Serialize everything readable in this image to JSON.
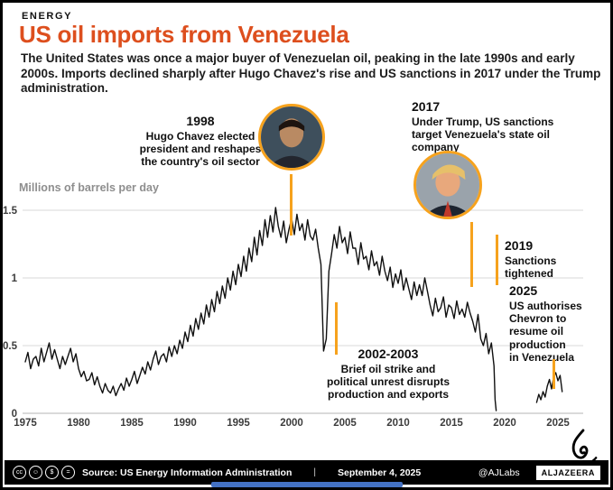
{
  "header": {
    "kicker": "ENERGY",
    "title": "US oil imports from Venezuela",
    "intro": "The United States was once a major buyer of Venezuelan oil, peaking in the late 1990s and early 2000s. Imports declined sharply after Hugo Chavez's rise and US sanctions in 2017 under the Trump administration."
  },
  "chart_data": {
    "type": "line",
    "title": "US oil imports from Venezuela",
    "ylabel": "Millions of barrels per day",
    "xlabel": "",
    "ylim": [
      0,
      1.5
    ],
    "xlim": [
      1975,
      2025.6
    ],
    "y_ticks": [
      0,
      0.5,
      1,
      1.5
    ],
    "x_ticks": [
      1975,
      1980,
      1985,
      1990,
      1995,
      2000,
      2005,
      2010,
      2015,
      2020,
      2025
    ],
    "grid": true,
    "legend": "none",
    "series": [
      {
        "name": "US oil imports from Venezuela (million barrels per day)",
        "segments": [
          [
            [
              1975,
              0.38
            ],
            [
              1975.25,
              0.45
            ],
            [
              1975.5,
              0.33
            ],
            [
              1975.75,
              0.4
            ],
            [
              1976,
              0.42
            ],
            [
              1976.25,
              0.35
            ],
            [
              1976.5,
              0.48
            ],
            [
              1976.75,
              0.38
            ],
            [
              1977,
              0.45
            ],
            [
              1977.25,
              0.52
            ],
            [
              1977.5,
              0.4
            ],
            [
              1977.75,
              0.47
            ],
            [
              1978,
              0.4
            ],
            [
              1978.25,
              0.33
            ],
            [
              1978.5,
              0.42
            ],
            [
              1978.75,
              0.36
            ],
            [
              1979,
              0.42
            ],
            [
              1979.25,
              0.48
            ],
            [
              1979.5,
              0.38
            ],
            [
              1979.75,
              0.44
            ],
            [
              1980,
              0.33
            ],
            [
              1980.25,
              0.27
            ],
            [
              1980.5,
              0.31
            ],
            [
              1980.75,
              0.24
            ],
            [
              1981,
              0.25
            ],
            [
              1981.25,
              0.3
            ],
            [
              1981.5,
              0.21
            ],
            [
              1981.75,
              0.27
            ],
            [
              1982,
              0.2
            ],
            [
              1982.25,
              0.15
            ],
            [
              1982.5,
              0.22
            ],
            [
              1982.75,
              0.17
            ],
            [
              1983,
              0.15
            ],
            [
              1983.25,
              0.2
            ],
            [
              1983.5,
              0.13
            ],
            [
              1983.75,
              0.18
            ],
            [
              1984,
              0.22
            ],
            [
              1984.25,
              0.17
            ],
            [
              1984.5,
              0.26
            ],
            [
              1984.75,
              0.2
            ],
            [
              1985,
              0.25
            ],
            [
              1985.25,
              0.31
            ],
            [
              1985.5,
              0.22
            ],
            [
              1985.75,
              0.28
            ],
            [
              1986,
              0.34
            ],
            [
              1986.25,
              0.29
            ],
            [
              1986.5,
              0.38
            ],
            [
              1986.75,
              0.32
            ],
            [
              1987,
              0.4
            ],
            [
              1987.25,
              0.46
            ],
            [
              1987.5,
              0.36
            ],
            [
              1987.75,
              0.42
            ],
            [
              1988,
              0.44
            ],
            [
              1988.25,
              0.38
            ],
            [
              1988.5,
              0.49
            ],
            [
              1988.75,
              0.42
            ],
            [
              1989,
              0.5
            ],
            [
              1989.25,
              0.44
            ],
            [
              1989.5,
              0.54
            ],
            [
              1989.75,
              0.48
            ],
            [
              1990,
              0.6
            ],
            [
              1990.25,
              0.53
            ],
            [
              1990.5,
              0.65
            ],
            [
              1990.75,
              0.57
            ],
            [
              1991,
              0.7
            ],
            [
              1991.25,
              0.62
            ],
            [
              1991.5,
              0.74
            ],
            [
              1991.75,
              0.66
            ],
            [
              1992,
              0.8
            ],
            [
              1992.25,
              0.71
            ],
            [
              1992.5,
              0.84
            ],
            [
              1992.75,
              0.75
            ],
            [
              1993,
              0.9
            ],
            [
              1993.25,
              0.81
            ],
            [
              1993.5,
              0.94
            ],
            [
              1993.75,
              0.85
            ],
            [
              1994,
              1.0
            ],
            [
              1994.25,
              0.91
            ],
            [
              1994.5,
              1.05
            ],
            [
              1994.75,
              0.95
            ],
            [
              1995,
              1.1
            ],
            [
              1995.25,
              1.01
            ],
            [
              1995.5,
              1.16
            ],
            [
              1995.75,
              1.05
            ],
            [
              1996,
              1.22
            ],
            [
              1996.25,
              1.12
            ],
            [
              1996.5,
              1.3
            ],
            [
              1996.75,
              1.17
            ],
            [
              1997,
              1.35
            ],
            [
              1997.25,
              1.24
            ],
            [
              1997.5,
              1.43
            ],
            [
              1997.75,
              1.3
            ],
            [
              1998,
              1.46
            ],
            [
              1998.25,
              1.34
            ],
            [
              1998.5,
              1.52
            ],
            [
              1998.75,
              1.38
            ],
            [
              1999,
              1.3
            ],
            [
              1999.25,
              1.42
            ],
            [
              1999.5,
              1.26
            ],
            [
              1999.75,
              1.36
            ],
            [
              2000,
              1.44
            ],
            [
              2000.25,
              1.32
            ],
            [
              2000.5,
              1.47
            ],
            [
              2000.75,
              1.35
            ],
            [
              2001,
              1.4
            ],
            [
              2001.25,
              1.28
            ],
            [
              2001.5,
              1.43
            ],
            [
              2001.75,
              1.31
            ],
            [
              2002,
              1.28
            ],
            [
              2002.25,
              1.36
            ],
            [
              2002.5,
              1.22
            ],
            [
              2002.75,
              1.1
            ],
            [
              2003,
              0.46
            ],
            [
              2003.25,
              0.55
            ],
            [
              2003.5,
              1.05
            ],
            [
              2003.75,
              1.18
            ],
            [
              2004,
              1.32
            ],
            [
              2004.25,
              1.22
            ],
            [
              2004.5,
              1.38
            ],
            [
              2004.75,
              1.26
            ],
            [
              2005,
              1.3
            ],
            [
              2005.25,
              1.18
            ],
            [
              2005.5,
              1.34
            ],
            [
              2005.75,
              1.22
            ],
            [
              2006,
              1.22
            ],
            [
              2006.25,
              1.1
            ],
            [
              2006.5,
              1.26
            ],
            [
              2006.75,
              1.14
            ],
            [
              2007,
              1.16
            ],
            [
              2007.25,
              1.06
            ],
            [
              2007.5,
              1.2
            ],
            [
              2007.75,
              1.09
            ],
            [
              2008,
              1.12
            ],
            [
              2008.25,
              1.02
            ],
            [
              2008.5,
              1.16
            ],
            [
              2008.75,
              1.05
            ],
            [
              2009,
              0.98
            ],
            [
              2009.25,
              1.08
            ],
            [
              2009.5,
              0.93
            ],
            [
              2009.75,
              1.03
            ],
            [
              2010,
              0.96
            ],
            [
              2010.25,
              1.06
            ],
            [
              2010.5,
              0.91
            ],
            [
              2010.75,
              1.0
            ],
            [
              2011,
              0.92
            ],
            [
              2011.25,
              0.84
            ],
            [
              2011.5,
              0.97
            ],
            [
              2011.75,
              0.87
            ],
            [
              2012,
              0.95
            ],
            [
              2012.25,
              0.87
            ],
            [
              2012.5,
              1.0
            ],
            [
              2012.75,
              0.9
            ],
            [
              2013,
              0.8
            ],
            [
              2013.25,
              0.72
            ],
            [
              2013.5,
              0.85
            ],
            [
              2013.75,
              0.75
            ],
            [
              2014,
              0.78
            ],
            [
              2014.25,
              0.86
            ],
            [
              2014.5,
              0.71
            ],
            [
              2014.75,
              0.8
            ],
            [
              2015,
              0.78
            ],
            [
              2015.25,
              0.7
            ],
            [
              2015.5,
              0.83
            ],
            [
              2015.75,
              0.73
            ],
            [
              2016,
              0.77
            ],
            [
              2016.25,
              0.71
            ],
            [
              2016.5,
              0.82
            ],
            [
              2016.75,
              0.74
            ],
            [
              2017,
              0.68
            ],
            [
              2017.25,
              0.6
            ],
            [
              2017.5,
              0.73
            ],
            [
              2017.75,
              0.55
            ],
            [
              2018,
              0.5
            ],
            [
              2018.25,
              0.59
            ],
            [
              2018.5,
              0.44
            ],
            [
              2018.75,
              0.52
            ],
            [
              2019,
              0.35
            ],
            [
              2019.1,
              0.1
            ],
            [
              2019.2,
              0.02
            ]
          ],
          [
            [
              2023,
              0.08
            ],
            [
              2023.2,
              0.14
            ],
            [
              2023.4,
              0.1
            ],
            [
              2023.6,
              0.16
            ],
            [
              2023.8,
              0.12
            ],
            [
              2024,
              0.2
            ],
            [
              2024.2,
              0.25
            ],
            [
              2024.4,
              0.18
            ],
            [
              2024.6,
              0.27
            ],
            [
              2024.8,
              0.3
            ],
            [
              2025,
              0.24
            ],
            [
              2025.2,
              0.28
            ],
            [
              2025.4,
              0.16
            ]
          ]
        ]
      }
    ]
  },
  "annotations": {
    "a1998": {
      "year": "1998",
      "lines": [
        "Hugo Chavez elected",
        "president and reshapes",
        "the country's oil sector"
      ]
    },
    "a2017": {
      "year": "2017",
      "lines": [
        "Under Trump, US sanctions",
        "target Venezuela's state oil",
        "company"
      ]
    },
    "a2019": {
      "year": "2019",
      "lines": [
        "Sanctions",
        "tightened"
      ]
    },
    "a2025": {
      "year": "2025",
      "lines": [
        "US authorises",
        "Chevron to",
        "resume oil",
        "production",
        "in Venezuela"
      ]
    },
    "a2002": {
      "year": "2002-2003",
      "lines": [
        "Brief oil strike and",
        "political unrest disrupts",
        "production and exports"
      ]
    }
  },
  "footer": {
    "license_glyphs": [
      "cc",
      "☺",
      "$",
      "="
    ],
    "source": "Source: US Energy Information Administration",
    "separator": "|",
    "date": "September 4, 2025",
    "handle": "@AJLabs",
    "brand": "ALJAZEERA"
  },
  "colors": {
    "accent": "#f6a21d",
    "title_color": "#dd4f1e",
    "line_color": "#101010",
    "grid_color": "#d8d8d8",
    "axis_text": "#3d3d3d",
    "strip_color": "#4472c4"
  }
}
